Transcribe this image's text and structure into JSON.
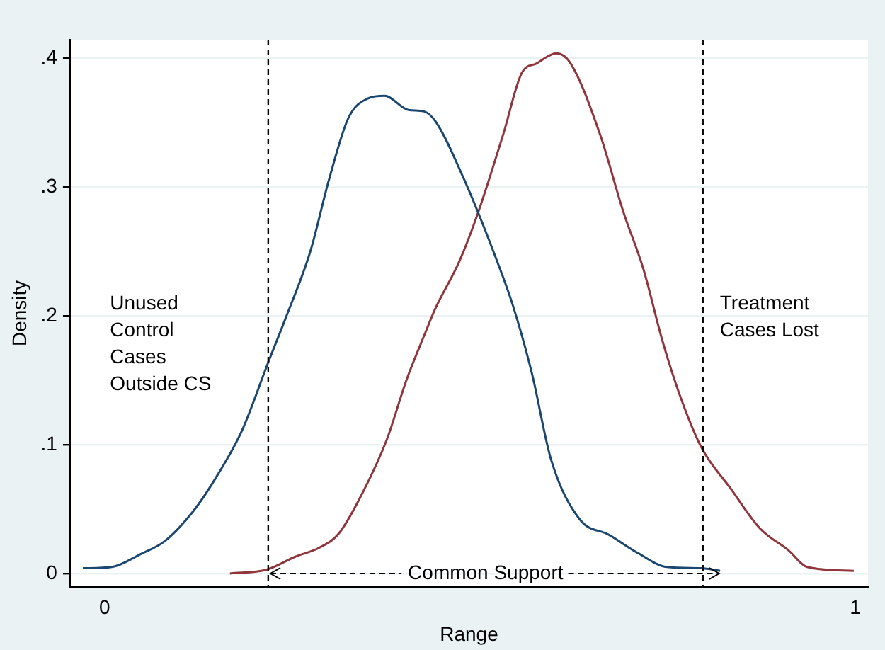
{
  "chart_data": {
    "type": "line",
    "xlabel": "Range",
    "ylabel": "Density",
    "xlim": [
      -0.046,
      1.017
    ],
    "ylim": [
      -0.0104,
      0.4146
    ],
    "xticks": [
      0,
      1
    ],
    "yticks": [
      0,
      {
        "value": 0.1,
        "label": ".1"
      },
      {
        "value": 0.2,
        "label": ".2"
      },
      {
        "value": 0.3,
        "label": ".3"
      },
      {
        "value": 0.4,
        "label": ".4"
      }
    ],
    "grid": "y",
    "legend": false,
    "marker": "none",
    "line_style": "solid",
    "series": [
      {
        "color": "#1a476f",
        "x": [
          -0.029,
          0.0097,
          0.048,
          0.08,
          0.119,
          0.151,
          0.183,
          0.218,
          0.241,
          0.274,
          0.299,
          0.325,
          0.351,
          0.373,
          0.405,
          0.425,
          0.441,
          0.479,
          0.518,
          0.544,
          0.569,
          0.595,
          0.633,
          0.672,
          0.71,
          0.749,
          0.795,
          0.82
        ],
        "values": [
          0.004,
          0.005,
          0.015,
          0.025,
          0.049,
          0.077,
          0.111,
          0.164,
          0.198,
          0.25,
          0.306,
          0.354,
          0.369,
          0.371,
          0.36,
          0.359,
          0.351,
          0.306,
          0.25,
          0.208,
          0.156,
          0.088,
          0.042,
          0.03,
          0.016,
          0.005,
          0.004,
          0.002
        ]
      },
      {
        "color": "#90353b",
        "x": [
          0.167,
          0.216,
          0.254,
          0.286,
          0.312,
          0.344,
          0.376,
          0.402,
          0.428,
          0.44,
          0.473,
          0.498,
          0.531,
          0.556,
          0.575,
          0.602,
          0.621,
          0.66,
          0.691,
          0.718,
          0.743,
          0.766,
          0.795,
          0.834,
          0.873,
          0.911,
          0.936,
          0.998
        ],
        "values": [
          0,
          0.003,
          0.013,
          0.02,
          0.031,
          0.063,
          0.104,
          0.15,
          0.188,
          0.205,
          0.243,
          0.281,
          0.341,
          0.389,
          0.396,
          0.404,
          0.396,
          0.341,
          0.281,
          0.236,
          0.181,
          0.139,
          0.098,
          0.066,
          0.035,
          0.018,
          0.005,
          0.002
        ]
      }
    ],
    "ref_lines": [
      {
        "axis": "x",
        "value": 0.218,
        "color": "#000000",
        "line_style": "dashed"
      },
      {
        "axis": "x",
        "value": 0.797,
        "color": "#000000",
        "line_style": "dashed"
      }
    ],
    "annotations": [
      "Unused\nControl\nCases\nOutside CS",
      "Treatment\nCases Lost",
      {
        "text": "Common Support",
        "x": 0.218,
        "y": 0
      }
    ]
  }
}
